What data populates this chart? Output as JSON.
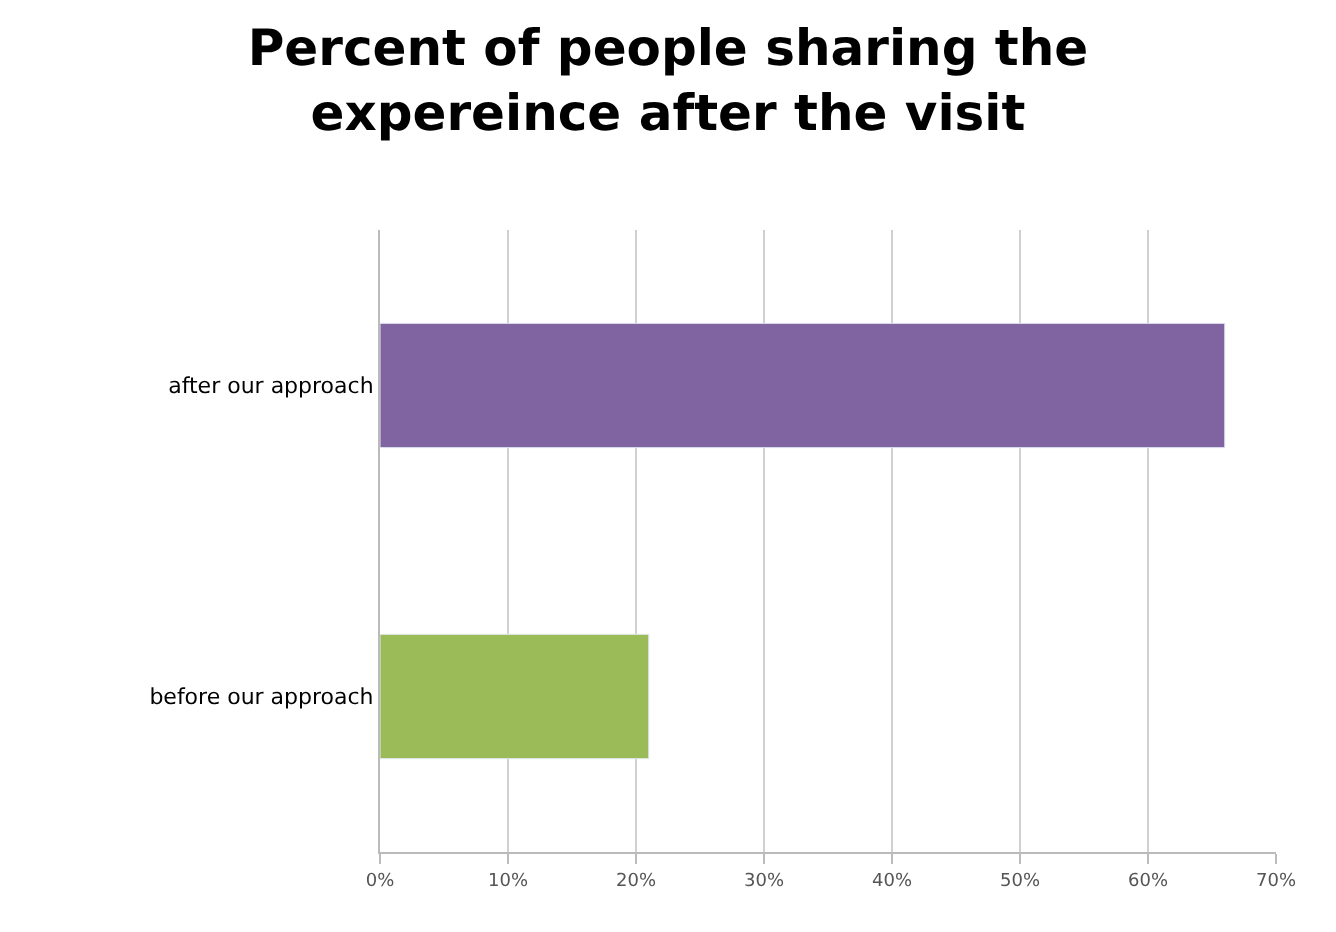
{
  "chart_data": {
    "type": "bar",
    "orientation": "horizontal",
    "title": "Percent of people sharing the expereince after the visit",
    "categories": [
      "after our approach",
      "before our approach"
    ],
    "values": [
      66,
      21
    ],
    "colors": [
      "#8064a2",
      "#9bbb59"
    ],
    "xlim": [
      0,
      70
    ],
    "xticks": [
      {
        "value": 0,
        "label": "0%"
      },
      {
        "value": 10,
        "label": "10%"
      },
      {
        "value": 20,
        "label": "20%"
      },
      {
        "value": 30,
        "label": "30%"
      },
      {
        "value": 40,
        "label": "40%"
      },
      {
        "value": 50,
        "label": "50%"
      },
      {
        "value": 60,
        "label": "60%"
      },
      {
        "value": 70,
        "label": "70%"
      }
    ],
    "grid": "x"
  }
}
